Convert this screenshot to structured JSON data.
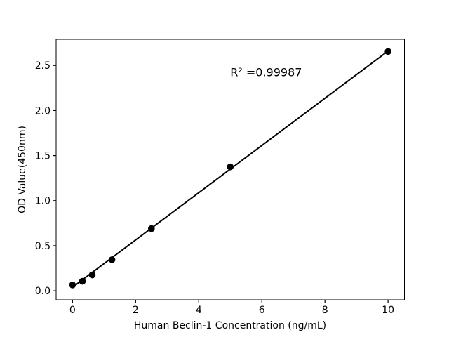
{
  "chart_data": {
    "type": "scatter",
    "title": "",
    "xlabel": "Human Beclin-1 Concentration (ng/mL)",
    "ylabel": "OD Value(450nm)",
    "points": {
      "x": [
        0,
        0.313,
        0.625,
        1.25,
        2.5,
        5,
        10
      ],
      "y": [
        0.065,
        0.106,
        0.176,
        0.345,
        0.69,
        1.375,
        2.655
      ]
    },
    "fit_line": {
      "x": [
        0,
        10
      ],
      "y": [
        0.04,
        2.66
      ]
    },
    "annotation": {
      "text": "R² =0.99987",
      "x": 5.0,
      "y": 2.38
    },
    "xlim": [
      -0.52,
      10.52
    ],
    "ylim": [
      -0.1,
      2.79
    ],
    "xticks": [
      0,
      2,
      4,
      6,
      8,
      10
    ],
    "xtick_labels": [
      "0",
      "2",
      "4",
      "6",
      "8",
      "10"
    ],
    "yticks": [
      0.0,
      0.5,
      1.0,
      1.5,
      2.0,
      2.5
    ],
    "ytick_labels": [
      "0.0",
      "0.5",
      "1.0",
      "1.5",
      "2.0",
      "2.5"
    ],
    "grid": false,
    "legend_position": "none",
    "marker_color": "#000000",
    "line_color": "#000000",
    "axis_color": "#000000",
    "background_color": "#ffffff"
  }
}
